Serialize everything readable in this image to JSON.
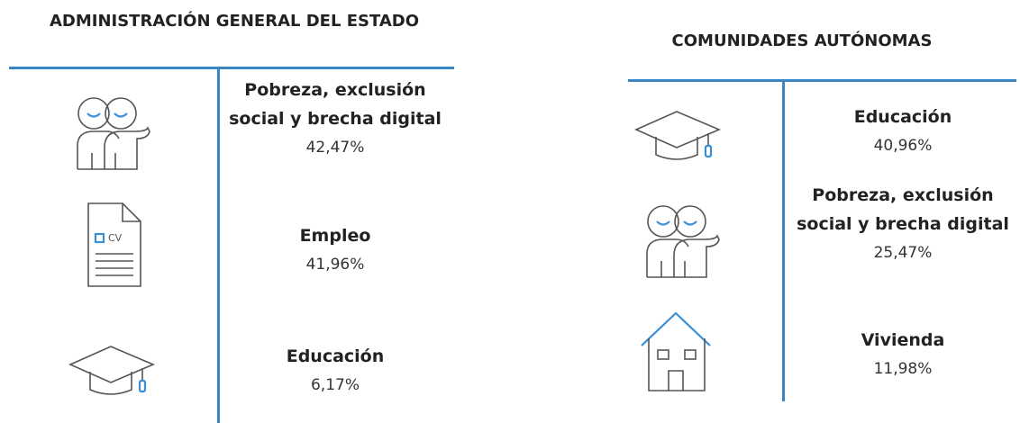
{
  "panels": [
    {
      "title": "ADMINISTRACIÓN GENERAL DEL ESTADO",
      "items": [
        {
          "label": "Pobreza, exclusión social y brecha digital",
          "value": "42,47%"
        },
        {
          "label": "Empleo",
          "value": "41,96%"
        },
        {
          "label": "Educación",
          "value": "6,17%"
        }
      ]
    },
    {
      "title": "COMUNIDADES AUTÓNOMAS",
      "items": [
        {
          "label": "Educación",
          "value": "40,96%"
        },
        {
          "label": "Pobreza, exclusión social y brecha digital",
          "value": "25,47%"
        },
        {
          "label": "Vivienda",
          "value": "11,98%"
        }
      ]
    }
  ]
}
